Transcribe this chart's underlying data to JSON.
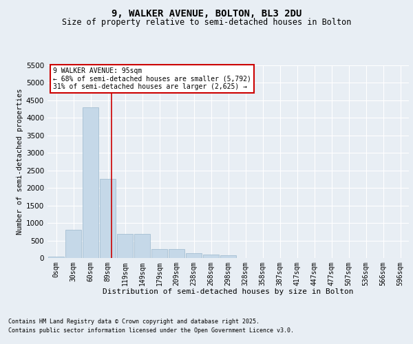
{
  "title": "9, WALKER AVENUE, BOLTON, BL3 2DU",
  "subtitle": "Size of property relative to semi-detached houses in Bolton",
  "xlabel": "Distribution of semi-detached houses by size in Bolton",
  "ylabel": "Number of semi-detached properties",
  "bin_labels": [
    "0sqm",
    "30sqm",
    "60sqm",
    "89sqm",
    "119sqm",
    "149sqm",
    "179sqm",
    "209sqm",
    "238sqm",
    "268sqm",
    "298sqm",
    "328sqm",
    "358sqm",
    "387sqm",
    "417sqm",
    "447sqm",
    "477sqm",
    "507sqm",
    "536sqm",
    "566sqm",
    "596sqm"
  ],
  "bar_values": [
    30,
    800,
    4300,
    2250,
    680,
    680,
    250,
    250,
    140,
    100,
    70,
    0,
    0,
    0,
    0,
    0,
    0,
    0,
    0,
    0,
    0
  ],
  "bar_color": "#c5d8e8",
  "bar_edgecolor": "#9ab8cc",
  "property_line_x": 3.2,
  "property_line_color": "#cc0000",
  "annotation_title": "9 WALKER AVENUE: 95sqm",
  "annotation_line1": "← 68% of semi-detached houses are smaller (5,792)",
  "annotation_line2": "31% of semi-detached houses are larger (2,625) →",
  "annotation_box_color": "#ffffff",
  "annotation_box_edgecolor": "#cc0000",
  "ylim_max": 5500,
  "yticks": [
    0,
    500,
    1000,
    1500,
    2000,
    2500,
    3000,
    3500,
    4000,
    4500,
    5000,
    5500
  ],
  "background_color": "#e8eef4",
  "grid_color": "#ffffff",
  "footer_line1": "Contains HM Land Registry data © Crown copyright and database right 2025.",
  "footer_line2": "Contains public sector information licensed under the Open Government Licence v3.0."
}
